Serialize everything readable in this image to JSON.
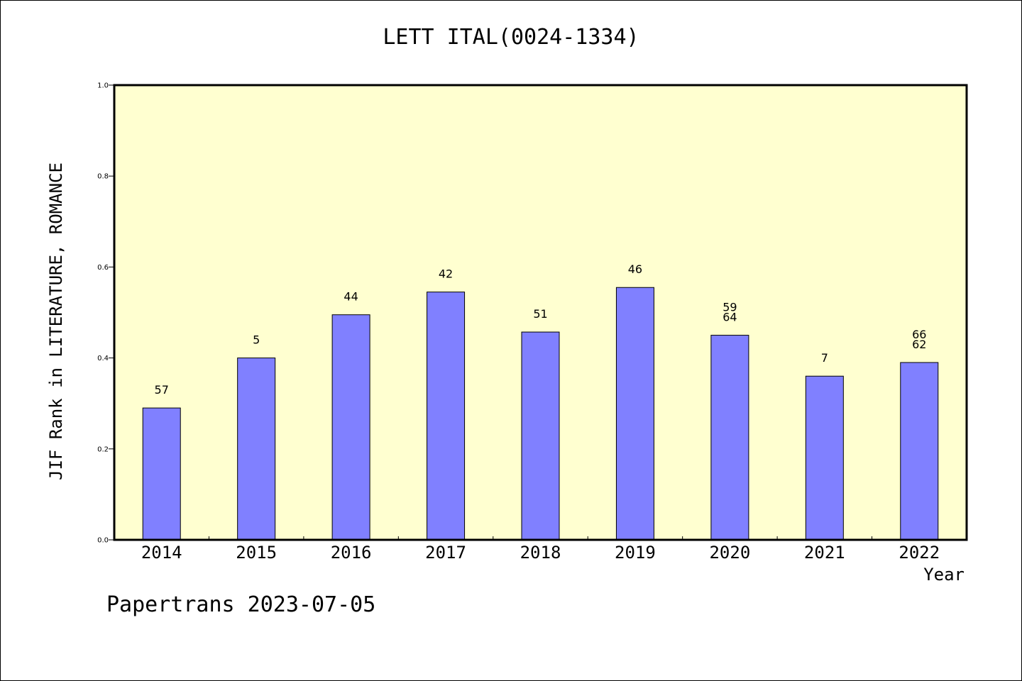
{
  "chart_data": {
    "type": "bar",
    "title": "LETT ITAL(0024-1334)",
    "xlabel": "Year",
    "ylabel": "JIF Rank in LITERATURE, ROMANCE",
    "ylim": [
      0,
      1.0
    ],
    "yticks": [
      "0.0",
      "0.2",
      "0.4",
      "0.6",
      "0.8",
      "1.0"
    ],
    "categories": [
      "2014",
      "2015",
      "2016",
      "2017",
      "2018",
      "2019",
      "2020",
      "2021",
      "2022"
    ],
    "values": [
      0.29,
      0.4,
      0.495,
      0.545,
      0.457,
      0.555,
      0.45,
      0.36,
      0.39
    ],
    "data_labels": [
      [
        "57"
      ],
      [
        "5"
      ],
      [
        "44"
      ],
      [
        "42"
      ],
      [
        "51"
      ],
      [
        "46"
      ],
      [
        "59",
        "64"
      ],
      [
        "7"
      ],
      [
        "66",
        "62"
      ]
    ],
    "grid": false,
    "legend": "none"
  },
  "footer": "Papertrans 2023-07-05",
  "colors": {
    "plot_background": "#ffffd0",
    "bar_fill": "#8080ff",
    "axis": "#000000"
  }
}
